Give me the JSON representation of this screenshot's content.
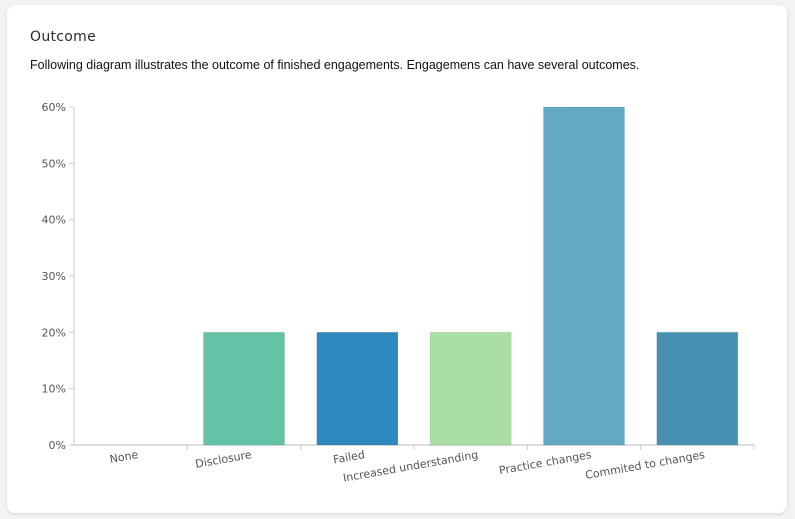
{
  "card": {
    "title": "Outcome",
    "subtitle": "Following diagram illustrates the outcome of finished engagements. Engagemens can have several outcomes."
  },
  "chart_data": {
    "type": "bar",
    "categories": [
      "None",
      "Disclosure",
      "Failed",
      "Increased understanding",
      "Practice changes",
      "Commited to changes"
    ],
    "values": [
      0,
      20,
      20,
      20,
      60,
      20
    ],
    "colors": [
      "#64c3a6",
      "#64c3a6",
      "#2e88be",
      "#a9dea6",
      "#64a9c6",
      "#4691b2"
    ],
    "y_ticks": [
      "0%",
      "10%",
      "20%",
      "30%",
      "40%",
      "50%",
      "60%"
    ],
    "ylim": [
      0,
      60
    ],
    "grid": false,
    "legend": "none"
  }
}
